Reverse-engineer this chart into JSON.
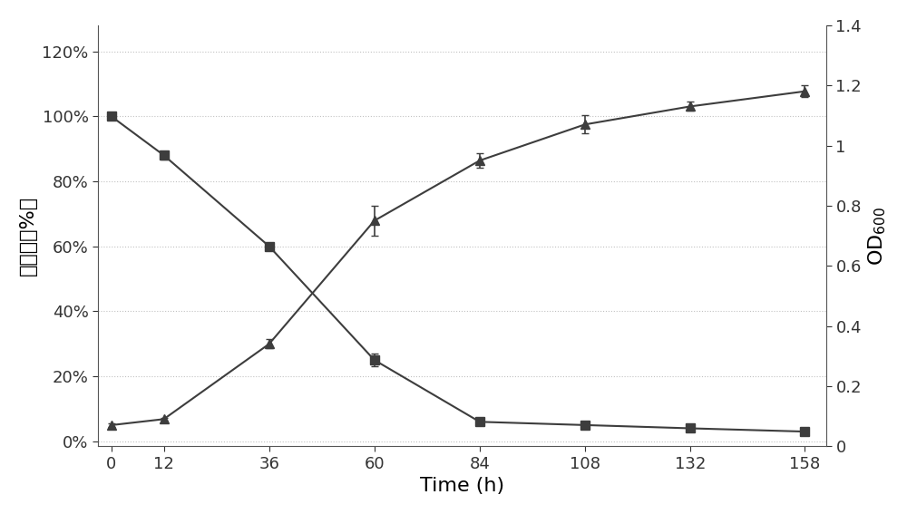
{
  "time": [
    0,
    12,
    36,
    60,
    84,
    108,
    132,
    158
  ],
  "phe_pct": [
    1.0,
    0.88,
    0.6,
    0.25,
    0.06,
    0.05,
    0.04,
    0.03
  ],
  "phe_err": [
    0.005,
    0.012,
    0.01,
    0.02,
    0.008,
    0.006,
    0.005,
    0.004
  ],
  "od600": [
    0.07,
    0.09,
    0.34,
    0.75,
    0.95,
    1.07,
    1.13,
    1.18
  ],
  "od600_err": [
    0.005,
    0.005,
    0.015,
    0.05,
    0.025,
    0.03,
    0.015,
    0.02
  ],
  "line_color": "#3d3d3d",
  "ylabel_left": "菲含量（%）",
  "ylabel_right": "OD$_{600}$",
  "xlabel": "Time (h)",
  "xlim": [
    -3,
    163
  ],
  "ylim_left": [
    -0.015,
    1.28
  ],
  "ylim_right": [
    0,
    1.4
  ],
  "yticks_left": [
    0.0,
    0.2,
    0.4,
    0.6,
    0.8,
    1.0,
    1.2
  ],
  "ytick_labels_left": [
    "0%",
    "20%",
    "40%",
    "60%",
    "80%",
    "100%",
    "120%"
  ],
  "yticks_right": [
    0,
    0.2,
    0.4,
    0.6,
    0.8,
    1.0,
    1.2,
    1.4
  ],
  "ytick_labels_right": [
    "0",
    "0.2",
    "0.4",
    "0.6",
    "0.8",
    "1",
    "1.2",
    "1.4"
  ],
  "xticks": [
    0,
    12,
    36,
    60,
    84,
    108,
    132,
    158
  ],
  "figsize": [
    10.0,
    5.67
  ],
  "dpi": 100,
  "marker_square": "s",
  "marker_triangle": "^",
  "markersize": 7,
  "linewidth": 1.5,
  "fontsize_labels": 16,
  "fontsize_ticks": 13,
  "capsize": 3,
  "elinewidth": 1.2
}
